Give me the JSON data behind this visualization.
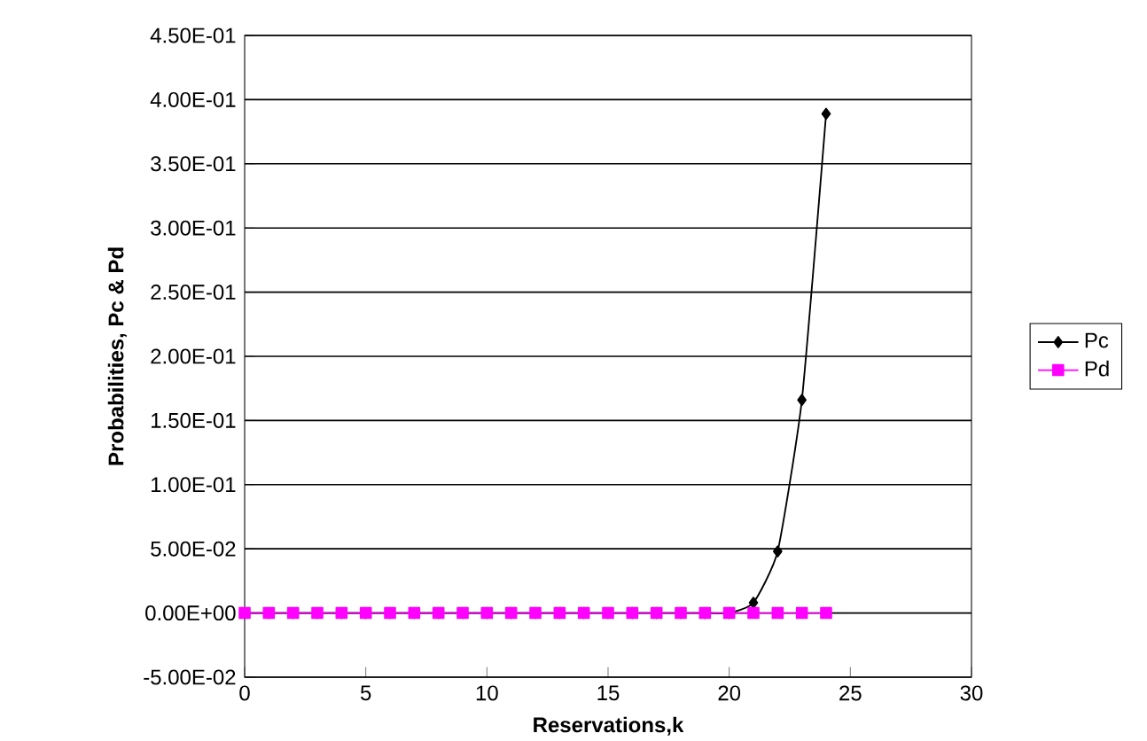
{
  "chart_data": {
    "type": "line",
    "xlabel": "Reservations,k",
    "ylabel": "Probabilities, Pc & Pd",
    "xlim": [
      0,
      30
    ],
    "xticks": [
      0,
      5,
      10,
      15,
      20,
      25,
      30
    ],
    "ylim": [
      -0.05,
      0.45
    ],
    "yticks": [
      {
        "value": -0.05,
        "label": "-5.00E-02"
      },
      {
        "value": 0,
        "label": "0.00E+00"
      },
      {
        "value": 0.05,
        "label": "5.00E-02"
      },
      {
        "value": 0.1,
        "label": "1.00E-01"
      },
      {
        "value": 0.15,
        "label": "1.50E-01"
      },
      {
        "value": 0.2,
        "label": "2.00E-01"
      },
      {
        "value": 0.25,
        "label": "2.50E-01"
      },
      {
        "value": 0.3,
        "label": "3.00E-01"
      },
      {
        "value": 0.35,
        "label": "3.50E-01"
      },
      {
        "value": 0.4,
        "label": "4.00E-01"
      },
      {
        "value": 0.45,
        "label": "4.50E-01"
      }
    ],
    "grid": "y",
    "legend": "right",
    "line_style": "solid",
    "x": [
      0,
      1,
      2,
      3,
      4,
      5,
      6,
      7,
      8,
      9,
      10,
      11,
      12,
      13,
      14,
      15,
      16,
      17,
      18,
      19,
      20,
      21,
      22,
      23,
      24
    ],
    "series": [
      {
        "name": "Pc",
        "color": "#000000",
        "marker": "diamond",
        "values": [
          0,
          0,
          0,
          0,
          0,
          0,
          0,
          0,
          0,
          0,
          0,
          0,
          0,
          0,
          0,
          0,
          0,
          0,
          0,
          0,
          0,
          0.008,
          0.048,
          0.166,
          0.389
        ]
      },
      {
        "name": "Pd",
        "color": "#ff00ff",
        "marker": "square",
        "values": [
          0,
          0,
          0,
          0,
          0,
          0,
          0,
          0,
          0,
          0,
          0,
          0,
          0,
          0,
          0,
          0,
          0,
          0,
          0,
          0,
          0,
          0,
          0,
          0,
          0
        ]
      }
    ]
  }
}
